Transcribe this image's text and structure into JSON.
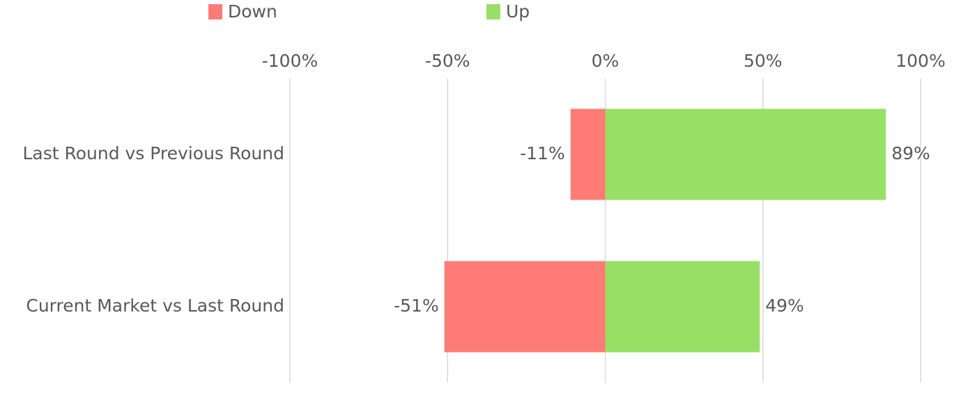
{
  "chart_data": {
    "type": "bar",
    "orientation": "horizontal",
    "stacked": true,
    "categories": [
      "Last Round vs Previous Round",
      "Current Market vs Last Round"
    ],
    "series": [
      {
        "name": "Down",
        "color": "#ff7b76",
        "values": [
          -11,
          -51
        ],
        "value_labels": [
          "-11%",
          "-51%"
        ]
      },
      {
        "name": "Up",
        "color": "#97e065",
        "values": [
          89,
          49
        ],
        "value_labels": [
          "89%",
          "49%"
        ]
      }
    ],
    "xlim": [
      -100,
      100
    ],
    "xticks": [
      {
        "value": -100,
        "label": "-100%"
      },
      {
        "value": -50,
        "label": "-50%"
      },
      {
        "value": 0,
        "label": "0%"
      },
      {
        "value": 50,
        "label": "50%"
      },
      {
        "value": 100,
        "label": "100%"
      }
    ],
    "grid": true,
    "legend": "top"
  }
}
